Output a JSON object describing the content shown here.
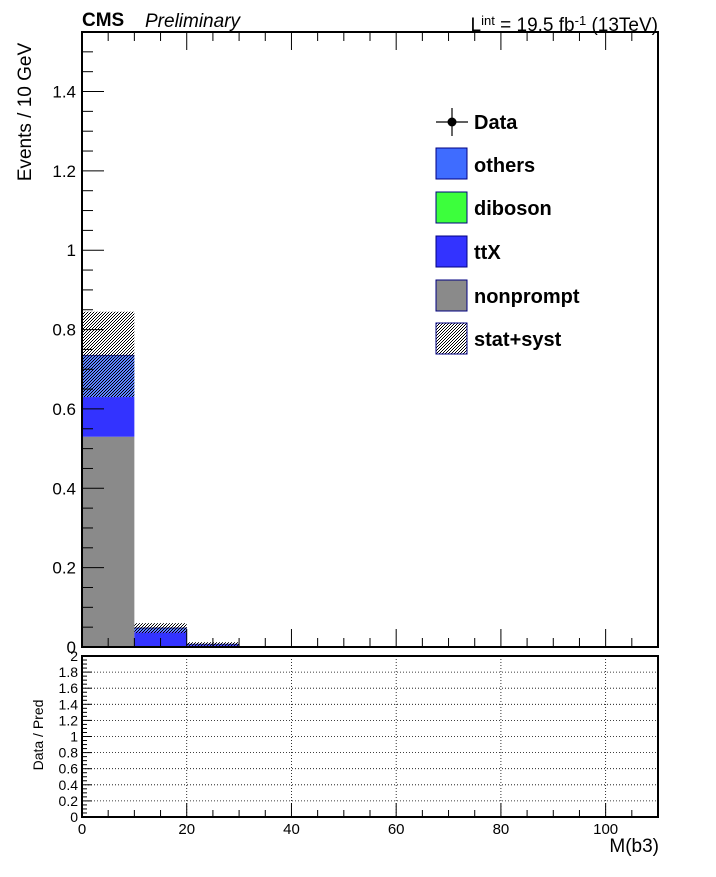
{
  "header": {
    "experiment": "CMS",
    "status": "Preliminary",
    "lumi_prefix": "L",
    "lumi_sup": "int",
    "lumi_value": " = 19.5 fb",
    "lumi_exp": "-1",
    "lumi_energy": " (13TeV)"
  },
  "legend": {
    "data": "Data",
    "others": "others",
    "diboson": "diboson",
    "ttx": "ttX",
    "nonprompt": "nonprompt",
    "uncertainty": "stat+syst"
  },
  "colors": {
    "others": "#3f6cff",
    "diboson": "#3cff3c",
    "ttx": "#3333ff",
    "nonprompt": "#8a8a8a",
    "frame": "#000000",
    "edge": "#000080"
  },
  "chart_data": [
    {
      "type": "bar",
      "stacked": true,
      "xlabel": "M(b3)",
      "ylabel": "Events / 10 GeV",
      "xlim": [
        0,
        110
      ],
      "ylim": [
        0,
        1.55
      ],
      "bin_width": 10,
      "x_ticks": [
        "0",
        "20",
        "40",
        "60",
        "80",
        "100"
      ],
      "y_ticks": [
        "0",
        "0.2",
        "0.4",
        "0.6",
        "0.8",
        "1",
        "1.2",
        "1.4"
      ],
      "bins": [
        [
          0,
          10
        ],
        [
          10,
          20
        ],
        [
          20,
          30
        ]
      ],
      "series": [
        {
          "name": "nonprompt",
          "values": [
            0.53,
            0.0,
            0.0
          ]
        },
        {
          "name": "ttX",
          "values": [
            0.1,
            0.04,
            0.005
          ]
        },
        {
          "name": "diboson",
          "values": [
            0.0,
            0.0,
            0.0
          ]
        },
        {
          "name": "others",
          "values": [
            0.105,
            0.008,
            0.002
          ]
        }
      ],
      "uncertainty": {
        "name": "stat+syst",
        "up": [
          0.845,
          0.06,
          0.012
        ],
        "down": [
          0.63,
          0.035,
          0.003
        ]
      },
      "data_points": [],
      "legend_position": "upper-right"
    },
    {
      "type": "scatter",
      "xlabel": "M(b3)",
      "ylabel": "Data / Pred",
      "xlim": [
        0,
        110
      ],
      "ylim": [
        0,
        2.0
      ],
      "y_ticks": [
        "0",
        "0.2",
        "0.4",
        "0.6",
        "0.8",
        "1",
        "1.2",
        "1.4",
        "1.6",
        "1.8",
        "2"
      ],
      "grid": true,
      "points": []
    }
  ]
}
